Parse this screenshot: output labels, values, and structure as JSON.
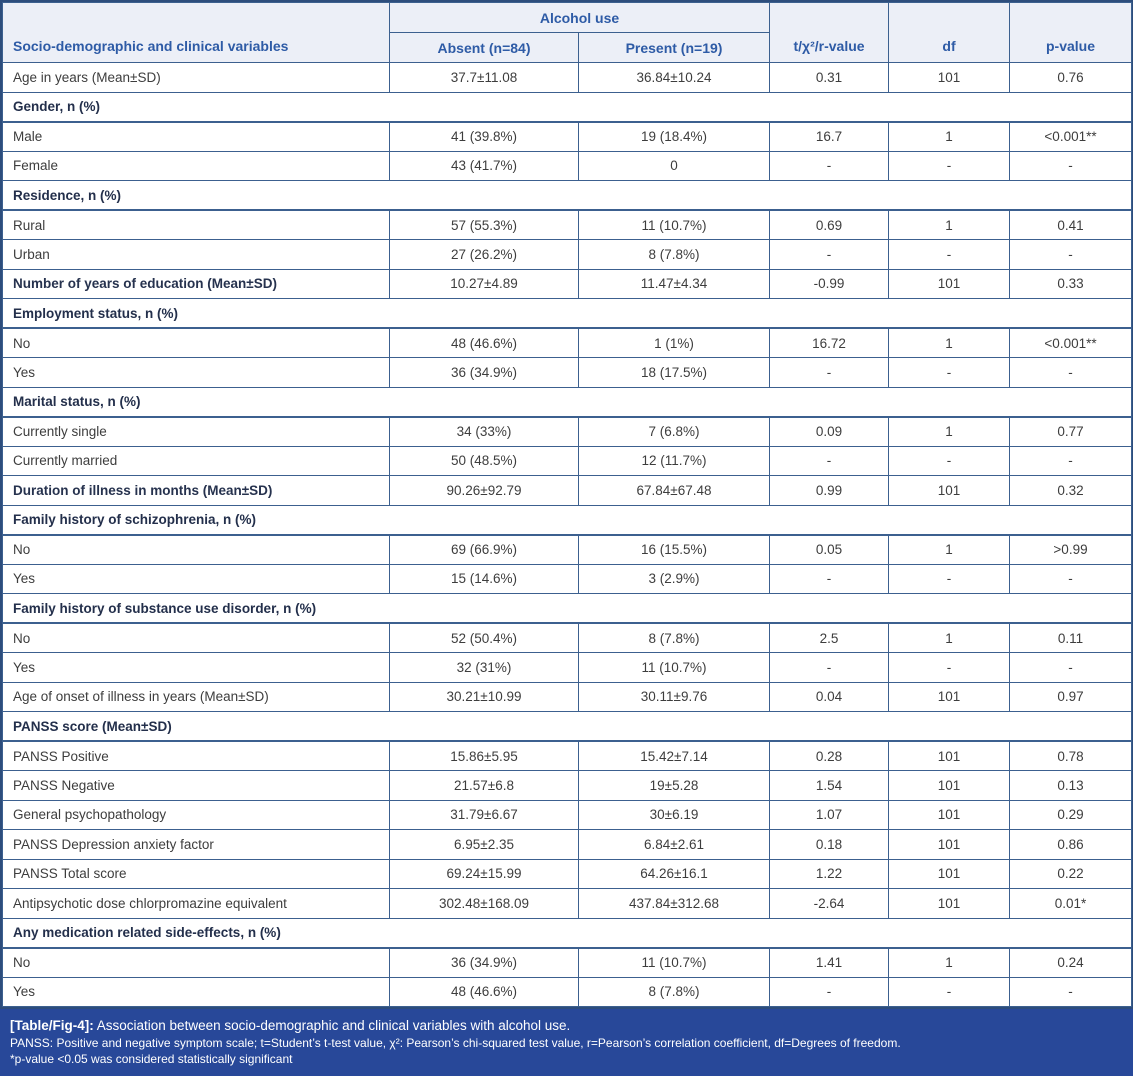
{
  "table": {
    "header": {
      "variables_col": "Socio-demographic and clinical variables",
      "group_label": "Alcohol use",
      "absent_col": "Absent (n=84)",
      "present_col": "Present (n=19)",
      "stat_col": "t/χ²/r-value",
      "df_col": "df",
      "p_col": "p-value"
    },
    "rows": [
      {
        "type": "data",
        "bold": false,
        "label": "Age in years (Mean±SD)",
        "absent": "37.7±11.08",
        "present": "36.84±10.24",
        "stat": "0.31",
        "df": "101",
        "p": "0.76"
      },
      {
        "type": "section",
        "label": "Gender, n (%)"
      },
      {
        "type": "data",
        "bold": false,
        "label": "Male",
        "absent": "41 (39.8%)",
        "present": "19 (18.4%)",
        "stat": "16.7",
        "df": "1",
        "p": "<0.001**"
      },
      {
        "type": "data",
        "bold": false,
        "label": "Female",
        "absent": "43 (41.7%)",
        "present": "0",
        "stat": "-",
        "df": "-",
        "p": "-"
      },
      {
        "type": "section",
        "label": "Residence, n (%)"
      },
      {
        "type": "data",
        "bold": false,
        "label": "Rural",
        "absent": "57 (55.3%)",
        "present": "11 (10.7%)",
        "stat": "0.69",
        "df": "1",
        "p": "0.41"
      },
      {
        "type": "data",
        "bold": false,
        "label": "Urban",
        "absent": "27 (26.2%)",
        "present": "8 (7.8%)",
        "stat": "-",
        "df": "-",
        "p": "-"
      },
      {
        "type": "data",
        "bold": true,
        "label": "Number of years of education (Mean±SD)",
        "absent": "10.27±4.89",
        "present": "11.47±4.34",
        "stat": "-0.99",
        "df": "101",
        "p": "0.33"
      },
      {
        "type": "section",
        "label": "Employment status, n (%)"
      },
      {
        "type": "data",
        "bold": false,
        "label": "No",
        "absent": "48 (46.6%)",
        "present": "1 (1%)",
        "stat": "16.72",
        "df": "1",
        "p": "<0.001**"
      },
      {
        "type": "data",
        "bold": false,
        "label": "Yes",
        "absent": "36 (34.9%)",
        "present": "18 (17.5%)",
        "stat": "-",
        "df": "-",
        "p": "-"
      },
      {
        "type": "section",
        "label": "Marital status, n (%)"
      },
      {
        "type": "data",
        "bold": false,
        "label": "Currently single",
        "absent": "34 (33%)",
        "present": "7 (6.8%)",
        "stat": "0.09",
        "df": "1",
        "p": "0.77"
      },
      {
        "type": "data",
        "bold": false,
        "label": "Currently married",
        "absent": "50 (48.5%)",
        "present": "12 (11.7%)",
        "stat": "-",
        "df": "-",
        "p": "-"
      },
      {
        "type": "data",
        "bold": true,
        "label": "Duration of illness in months (Mean±SD)",
        "absent": "90.26±92.79",
        "present": "67.84±67.48",
        "stat": "0.99",
        "df": "101",
        "p": "0.32"
      },
      {
        "type": "section",
        "label": "Family history of schizophrenia, n (%)"
      },
      {
        "type": "data",
        "bold": false,
        "label": "No",
        "absent": "69 (66.9%)",
        "present": "16 (15.5%)",
        "stat": "0.05",
        "df": "1",
        "p": ">0.99"
      },
      {
        "type": "data",
        "bold": false,
        "label": "Yes",
        "absent": "15 (14.6%)",
        "present": "3 (2.9%)",
        "stat": "-",
        "df": "-",
        "p": "-"
      },
      {
        "type": "section",
        "label": "Family history of substance use disorder, n (%)"
      },
      {
        "type": "data",
        "bold": false,
        "label": "No",
        "absent": "52 (50.4%)",
        "present": "8 (7.8%)",
        "stat": "2.5",
        "df": "1",
        "p": "0.11"
      },
      {
        "type": "data",
        "bold": false,
        "label": "Yes",
        "absent": "32 (31%)",
        "present": "11 (10.7%)",
        "stat": "-",
        "df": "-",
        "p": "-"
      },
      {
        "type": "data",
        "bold": false,
        "label": "Age of onset of illness in years (Mean±SD)",
        "absent": "30.21±10.99",
        "present": "30.11±9.76",
        "stat": "0.04",
        "df": "101",
        "p": "0.97"
      },
      {
        "type": "section",
        "label": "PANSS score (Mean±SD)"
      },
      {
        "type": "data",
        "bold": false,
        "label": "PANSS Positive",
        "absent": "15.86±5.95",
        "present": "15.42±7.14",
        "stat": "0.28",
        "df": "101",
        "p": "0.78"
      },
      {
        "type": "data",
        "bold": false,
        "label": "PANSS Negative",
        "absent": "21.57±6.8",
        "present": "19±5.28",
        "stat": "1.54",
        "df": "101",
        "p": "0.13"
      },
      {
        "type": "data",
        "bold": false,
        "label": "General psychopathology",
        "absent": "31.79±6.67",
        "present": "30±6.19",
        "stat": "1.07",
        "df": "101",
        "p": "0.29"
      },
      {
        "type": "data",
        "bold": false,
        "label": "PANSS Depression anxiety factor",
        "absent": "6.95±2.35",
        "present": "6.84±2.61",
        "stat": "0.18",
        "df": "101",
        "p": "0.86"
      },
      {
        "type": "data",
        "bold": false,
        "label": "PANSS Total score",
        "absent": "69.24±15.99",
        "present": "64.26±16.1",
        "stat": "1.22",
        "df": "101",
        "p": "0.22"
      },
      {
        "type": "data",
        "bold": false,
        "label": "Antipsychotic dose chlorpromazine equivalent",
        "absent": "302.48±168.09",
        "present": "437.84±312.68",
        "stat": "-2.64",
        "df": "101",
        "p": "0.01*"
      },
      {
        "type": "section",
        "label": "Any medication related side-effects, n (%)"
      },
      {
        "type": "data",
        "bold": false,
        "label": "No",
        "absent": "36 (34.9%)",
        "present": "11 (10.7%)",
        "stat": "1.41",
        "df": "1",
        "p": "0.24"
      },
      {
        "type": "data",
        "bold": false,
        "label": "Yes",
        "absent": "48 (46.6%)",
        "present": "8 (7.8%)",
        "stat": "-",
        "df": "-",
        "p": "-"
      }
    ]
  },
  "caption": {
    "tag": "[Table/Fig-4]:",
    "title": "Association between socio-demographic and clinical variables with alcohol use.",
    "note1": "PANSS: Positive and negative symptom scale; t=Student’s t-test value, χ²: Pearson’s chi-squared test value, r=Pearson’s correlation coefficient, df=Degrees of freedom.",
    "note2": "*p-value <0.05 was considered statistically significant"
  },
  "colors": {
    "header_bg": "#eceff7",
    "header_text": "#2e5ba6",
    "border": "#3c608f",
    "outer_border": "#2d4d7c",
    "section_text": "#232f4b",
    "body_text": "#3d3d3d",
    "caption_bg": "#284899",
    "caption_text": "#ffffff"
  }
}
